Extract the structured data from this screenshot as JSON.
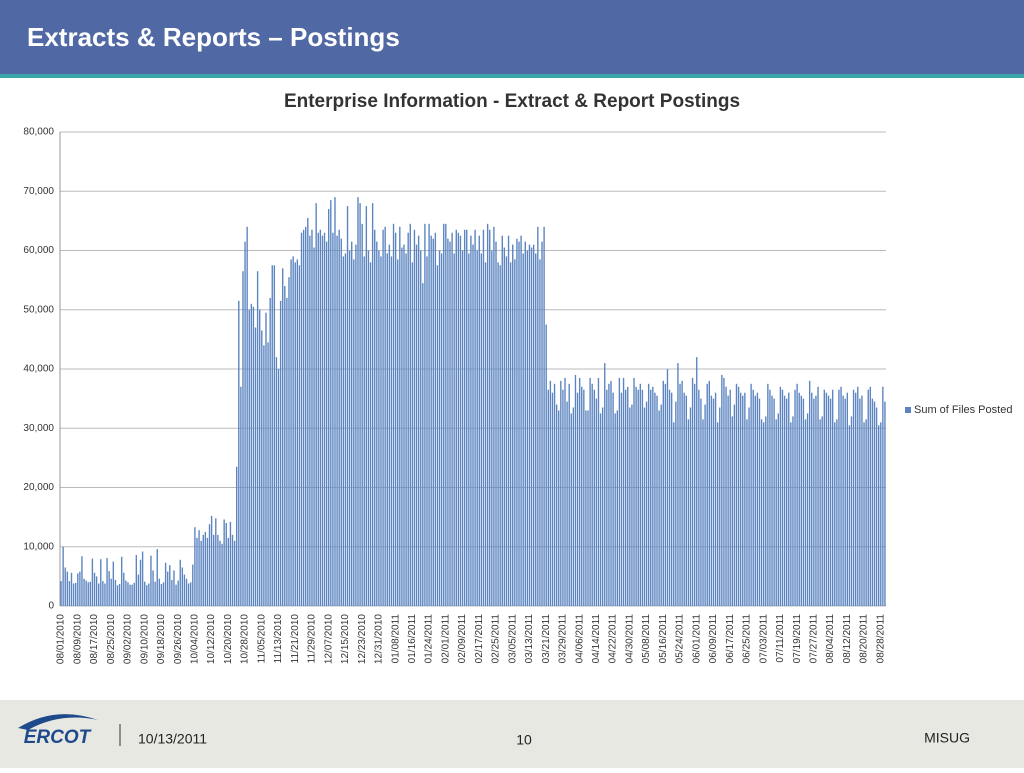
{
  "header": {
    "title": "Extracts & Reports – Postings"
  },
  "footer": {
    "logo": "ERCOT",
    "date": "10/13/2011",
    "page": "10",
    "org": "MISUG"
  },
  "chart_data": {
    "type": "bar",
    "title": "Enterprise Information - Extract & Report Postings",
    "ylim": [
      0,
      80000
    ],
    "yticks": [
      0,
      {
        "value": 10000,
        "label": "10,000"
      },
      {
        "value": 20000,
        "label": "20,000"
      },
      {
        "value": 30000,
        "label": "30,000"
      },
      {
        "value": 40000,
        "label": "40,000"
      },
      {
        "value": 50000,
        "label": "50,000"
      },
      {
        "value": 60000,
        "label": "60,000"
      },
      {
        "value": 70000,
        "label": "70,000"
      },
      {
        "value": 80000,
        "label": "80,000"
      }
    ],
    "grid": true,
    "legend": "right",
    "categories": [
      "08/01/2010",
      null,
      null,
      null,
      null,
      null,
      null,
      null,
      "08/09/2010",
      null,
      null,
      null,
      null,
      null,
      null,
      null,
      "08/17/2010",
      null,
      null,
      null,
      null,
      null,
      null,
      null,
      "08/25/2010",
      null,
      null,
      null,
      null,
      null,
      null,
      null,
      "09/02/2010",
      null,
      null,
      null,
      null,
      null,
      null,
      null,
      "09/10/2010",
      null,
      null,
      null,
      null,
      null,
      null,
      null,
      "09/18/2010",
      null,
      null,
      null,
      null,
      null,
      null,
      null,
      "09/26/2010",
      null,
      null,
      null,
      null,
      null,
      null,
      null,
      "10/04/2010",
      null,
      null,
      null,
      null,
      null,
      null,
      null,
      "10/12/2010",
      null,
      null,
      null,
      null,
      null,
      null,
      null,
      "10/20/2010",
      null,
      null,
      null,
      null,
      null,
      null,
      null,
      "10/28/2010",
      null,
      null,
      null,
      null,
      null,
      null,
      null,
      "11/05/2010",
      null,
      null,
      null,
      null,
      null,
      null,
      null,
      "11/13/2010",
      null,
      null,
      null,
      null,
      null,
      null,
      null,
      "11/21/2010",
      null,
      null,
      null,
      null,
      null,
      null,
      null,
      "11/29/2010",
      null,
      null,
      null,
      null,
      null,
      null,
      null,
      "12/07/2010",
      null,
      null,
      null,
      null,
      null,
      null,
      null,
      "12/15/2010",
      null,
      null,
      null,
      null,
      null,
      null,
      null,
      "12/23/2010",
      null,
      null,
      null,
      null,
      null,
      null,
      null,
      "12/31/2010",
      null,
      null,
      null,
      null,
      null,
      null,
      null,
      "01/08/2011",
      null,
      null,
      null,
      null,
      null,
      null,
      null,
      "01/16/2011",
      null,
      null,
      null,
      null,
      null,
      null,
      null,
      "01/24/2011",
      null,
      null,
      null,
      null,
      null,
      null,
      null,
      "02/01/2011",
      null,
      null,
      null,
      null,
      null,
      null,
      null,
      "02/09/2011",
      null,
      null,
      null,
      null,
      null,
      null,
      null,
      "02/17/2011",
      null,
      null,
      null,
      null,
      null,
      null,
      null,
      "02/25/2011",
      null,
      null,
      null,
      null,
      null,
      null,
      null,
      "03/05/2011",
      null,
      null,
      null,
      null,
      null,
      null,
      null,
      "03/13/2011",
      null,
      null,
      null,
      null,
      null,
      null,
      null,
      "03/21/2011",
      null,
      null,
      null,
      null,
      null,
      null,
      null,
      "03/29/2011",
      null,
      null,
      null,
      null,
      null,
      null,
      null,
      "04/06/2011",
      null,
      null,
      null,
      null,
      null,
      null,
      null,
      "04/14/2011",
      null,
      null,
      null,
      null,
      null,
      null,
      null,
      "04/22/2011",
      null,
      null,
      null,
      null,
      null,
      null,
      null,
      "04/30/2011",
      null,
      null,
      null,
      null,
      null,
      null,
      null,
      "05/08/2011",
      null,
      null,
      null,
      null,
      null,
      null,
      null,
      "05/16/2011",
      null,
      null,
      null,
      null,
      null,
      null,
      null,
      "05/24/2011",
      null,
      null,
      null,
      null,
      null,
      null,
      null,
      "06/01/2011",
      null,
      null,
      null,
      null,
      null,
      null,
      null,
      "06/09/2011",
      null,
      null,
      null,
      null,
      null,
      null,
      null,
      "06/17/2011",
      null,
      null,
      null,
      null,
      null,
      null,
      null,
      "06/25/2011",
      null,
      null,
      null,
      null,
      null,
      null,
      null,
      "07/03/2011",
      null,
      null,
      null,
      null,
      null,
      null,
      null,
      "07/11/2011",
      null,
      null,
      null,
      null,
      null,
      null,
      null,
      "07/19/2011",
      null,
      null,
      null,
      null,
      null,
      null,
      null,
      "07/27/2011",
      null,
      null,
      null,
      null,
      null,
      null,
      null,
      "08/04/2011",
      null,
      null,
      null,
      null,
      null,
      null,
      null,
      "08/12/2011",
      null,
      null,
      null,
      null,
      null,
      null,
      null,
      "08/20/2011",
      null,
      null,
      null,
      null,
      null,
      null,
      null,
      "08/28/2011",
      null,
      null
    ],
    "series": [
      {
        "name": "Sum of Files Posted",
        "color": "#5b84c0",
        "values": [
          4200,
          10000,
          6500,
          5800,
          4200,
          5600,
          3800,
          3900,
          5500,
          5800,
          8400,
          4600,
          4300,
          4000,
          4100,
          8000,
          5600,
          5000,
          3800,
          7900,
          4200,
          3800,
          8100,
          5900,
          4600,
          7500,
          4400,
          3500,
          3700,
          8300,
          5600,
          4300,
          4000,
          3600,
          3600,
          3900,
          8600,
          5300,
          7800,
          9200,
          4100,
          3500,
          3800,
          8500,
          6000,
          4100,
          9600,
          4600,
          3700,
          4000,
          7300,
          5800,
          6900,
          4400,
          6000,
          3600,
          4300,
          7800,
          6500,
          5300,
          4600,
          3800,
          4000,
          7000,
          13300,
          11500,
          12800,
          11000,
          12000,
          12500,
          11500,
          13800,
          15200,
          12000,
          14800,
          12000,
          11000,
          10500,
          14600,
          14000,
          11500,
          14200,
          12000,
          11000,
          23500,
          51500,
          37000,
          56500,
          61500,
          64000,
          50000,
          51000,
          50500,
          47000,
          56500,
          50000,
          46500,
          44000,
          49500,
          44500,
          52000,
          57500,
          57500,
          42000,
          40000,
          51500,
          57000,
          54000,
          52000,
          55500,
          58500,
          59000,
          58000,
          58500,
          57500,
          63000,
          63500,
          64000,
          65500,
          62500,
          63500,
          60500,
          68000,
          63000,
          63500,
          62500,
          63000,
          61500,
          67000,
          68500,
          63000,
          69000,
          62500,
          63500,
          62000,
          59000,
          59500,
          67500,
          60000,
          61500,
          58500,
          61000,
          69000,
          68000,
          64500,
          59000,
          67500,
          60000,
          58000,
          68000,
          63500,
          61500,
          60000,
          59000,
          63500,
          64000,
          59500,
          61000,
          59000,
          64500,
          63000,
          58500,
          64000,
          60500,
          61000,
          59500,
          63000,
          64500,
          58000,
          63500,
          61000,
          62500,
          60000,
          54500,
          64500,
          59000,
          64500,
          62500,
          62000,
          63000,
          57500,
          60000,
          59500,
          64500,
          64500,
          62000,
          61500,
          63000,
          59500,
          63500,
          63000,
          62500,
          60000,
          63500,
          63500,
          59500,
          62500,
          61000,
          63500,
          60000,
          62500,
          59500,
          63500,
          58000,
          64500,
          63500,
          60000,
          64000,
          61500,
          58000,
          57500,
          62500,
          60500,
          59000,
          62500,
          58000,
          61000,
          58500,
          62000,
          61500,
          62500,
          59500,
          61500,
          60000,
          61000,
          60500,
          61000,
          59500,
          64000,
          58500,
          61500,
          64000,
          47500,
          36500,
          38000,
          36000,
          37500,
          34000,
          33000,
          38000,
          36500,
          38500,
          34500,
          37500,
          32500,
          33500,
          39000,
          36000,
          38500,
          37000,
          36500,
          33000,
          33000,
          38500,
          37500,
          36500,
          35000,
          38500,
          32500,
          33500,
          41000,
          36500,
          37500,
          38000,
          36000,
          32500,
          33000,
          38500,
          36000,
          38500,
          36500,
          37000,
          33500,
          34000,
          38500,
          37000,
          36500,
          37500,
          36500,
          33500,
          34500,
          37500,
          36500,
          37000,
          36000,
          35500,
          33000,
          34000,
          38000,
          37500,
          40000,
          36500,
          36000,
          31000,
          34500,
          41000,
          37500,
          38000,
          36000,
          35500,
          31500,
          33500,
          38500,
          37500,
          42000,
          36500,
          35000,
          31500,
          34000,
          37500,
          38000,
          35500,
          35000,
          36000,
          31000,
          33500,
          39000,
          38500,
          37000,
          35500,
          36500,
          32000,
          34000,
          37500,
          37000,
          36000,
          35500,
          36000,
          31500,
          33500,
          37500,
          36500,
          35500,
          36000,
          35000,
          31500,
          31000,
          32000,
          37500,
          36500,
          35500,
          35000,
          31500,
          32500,
          37000,
          36500,
          35500,
          35000,
          36000,
          31000,
          32000,
          36500,
          37500,
          36000,
          35500,
          35000,
          31500,
          32500,
          38000,
          36000,
          35000,
          35500,
          37000,
          31500,
          32000,
          36500,
          36000,
          35500,
          35000,
          36500,
          31000,
          31500,
          36500,
          37000,
          35500,
          35000,
          36000,
          30500,
          32000,
          36500,
          36000,
          37000,
          35000,
          35500,
          31000,
          31500,
          36500,
          37000,
          35000,
          34500,
          33500,
          30500,
          31000,
          37000,
          34500
        ]
      }
    ]
  }
}
